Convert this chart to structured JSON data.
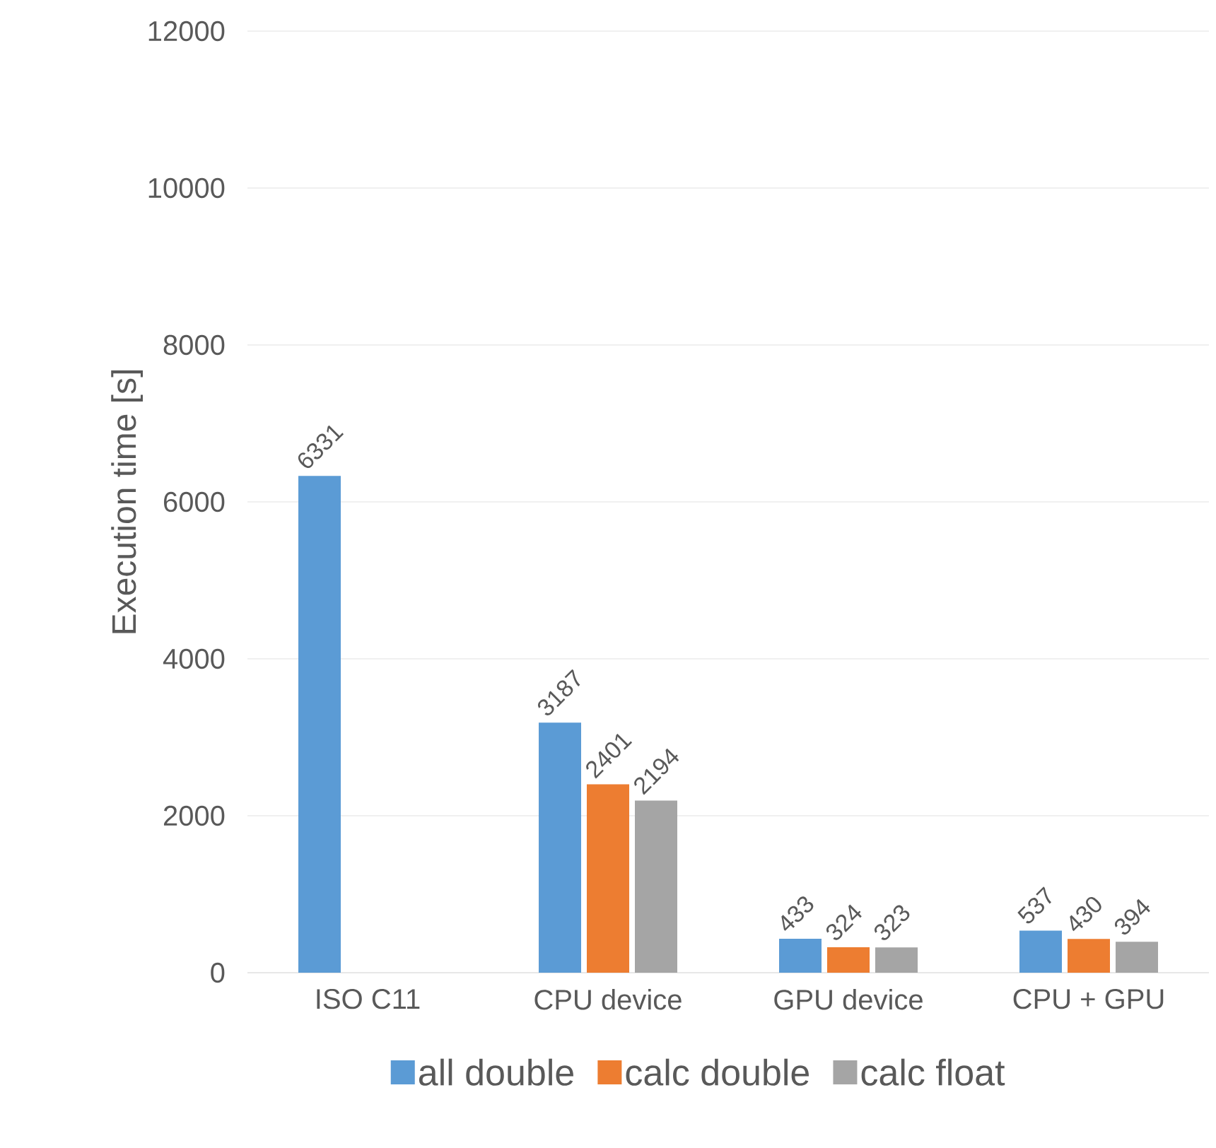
{
  "chart_data": {
    "type": "bar",
    "ylabel": "Execution time [s]",
    "categories": [
      "ISO C11",
      "CPU device",
      "GPU device",
      "CPU + GPU"
    ],
    "series": [
      {
        "name": "all double",
        "color": "#5b9bd5",
        "values": [
          6331,
          3187,
          433,
          537
        ]
      },
      {
        "name": "calc double",
        "color": "#ed7d31",
        "values": [
          null,
          2401,
          324,
          430
        ]
      },
      {
        "name": "calc float",
        "color": "#a5a5a5",
        "values": [
          null,
          2194,
          323,
          394
        ]
      }
    ],
    "ylim": [
      0,
      12000
    ],
    "yticks": [
      0,
      2000,
      4000,
      6000,
      8000,
      10000,
      12000
    ],
    "grid": "y",
    "legend": "bottom",
    "data_labels": true
  }
}
